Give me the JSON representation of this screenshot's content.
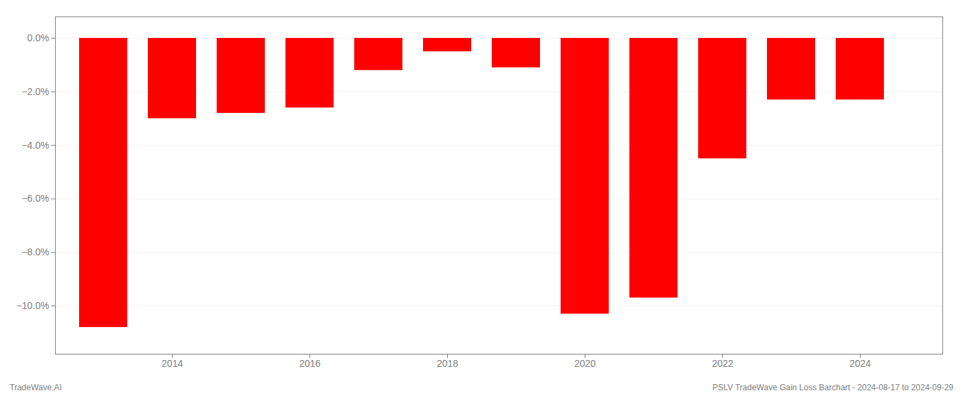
{
  "chart_data": {
    "type": "bar",
    "x": [
      2013,
      2014,
      2015,
      2016,
      2017,
      2018,
      2019,
      2020,
      2021,
      2022,
      2023,
      2024
    ],
    "values": [
      -10.8,
      -3.0,
      -2.8,
      -2.6,
      -1.2,
      -0.5,
      -1.1,
      -10.3,
      -9.7,
      -4.5,
      -2.3,
      -2.3
    ],
    "color": "#ff0000",
    "xlim": [
      2012.3,
      2025.2
    ],
    "xticks": [
      2014,
      2016,
      2018,
      2020,
      2022,
      2024
    ],
    "ylim": [
      -11.8,
      0.8
    ],
    "yticks": [
      {
        "value": 0.0,
        "label": "0.0%"
      },
      {
        "value": -2.0,
        "label": "−2.0%"
      },
      {
        "value": -4.0,
        "label": "−4.0%"
      },
      {
        "value": -6.0,
        "label": "−6.0%"
      },
      {
        "value": -8.0,
        "label": "−8.0%"
      },
      {
        "value": -10.0,
        "label": "−10.0%"
      }
    ],
    "grid": true,
    "annotations": [
      "TradeWave.AI",
      "PSLV TradeWave Gain Loss Barchart - 2024-08-17 to 2024-09-29"
    ]
  }
}
